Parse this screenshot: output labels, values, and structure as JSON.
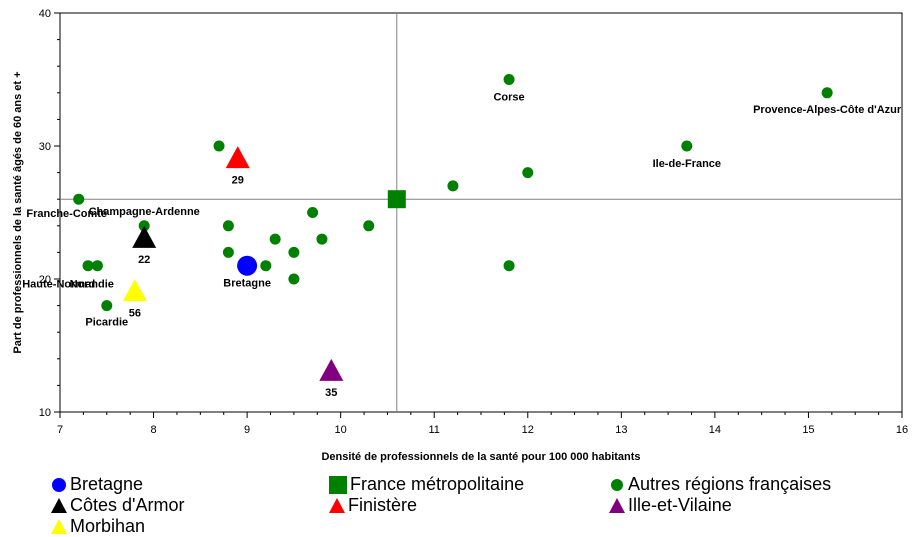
{
  "chart_data": {
    "type": "scatter",
    "xlabel": "Densité de professionnels de la santé pour 100 000 habitants",
    "ylabel": "Part de professionnels de la santé âgés de 60 ans et +",
    "xlim": [
      7,
      16
    ],
    "ylim": [
      10,
      40
    ],
    "x_ticks": [
      "7",
      "8",
      "9",
      "10",
      "11",
      "12",
      "13",
      "14",
      "15",
      "16"
    ],
    "y_ticks": [
      "10",
      "20",
      "30",
      "40"
    ],
    "grid": false,
    "reference_lines": {
      "x": 10.6,
      "y": 26
    },
    "legend_position": "bottom",
    "series": [
      {
        "name": "Bretagne",
        "marker": "circle",
        "color": "#0000ff",
        "points": [
          {
            "x": 9.0,
            "y": 21,
            "label": "Bretagne"
          }
        ]
      },
      {
        "name": "Côtes d'Armor",
        "marker": "triangle",
        "color": "#000000",
        "points": [
          {
            "x": 7.9,
            "y": 23,
            "label": "22"
          }
        ]
      },
      {
        "name": "Morbihan",
        "marker": "triangle",
        "color": "#ffff00",
        "points": [
          {
            "x": 7.8,
            "y": 19,
            "label": "56"
          }
        ]
      },
      {
        "name": "France métropolitaine",
        "marker": "square",
        "color": "#008000",
        "points": [
          {
            "x": 10.6,
            "y": 26,
            "label": ""
          }
        ]
      },
      {
        "name": "Finistère",
        "marker": "triangle",
        "color": "#ff0000",
        "points": [
          {
            "x": 8.9,
            "y": 29,
            "label": "29"
          }
        ]
      },
      {
        "name": "Autres régions françaises",
        "marker": "circle-small",
        "color": "#008000",
        "points": [
          {
            "x": 7.2,
            "y": 26,
            "label": "Franche-Comté"
          },
          {
            "x": 7.9,
            "y": 24,
            "label": "Champagne-Ardenne"
          },
          {
            "x": 7.3,
            "y": 21,
            "label": "Haute-Normandie"
          },
          {
            "x": 7.4,
            "y": 21,
            "label": "Nord"
          },
          {
            "x": 7.5,
            "y": 18,
            "label": "Picardie"
          },
          {
            "x": 8.7,
            "y": 30,
            "label": ""
          },
          {
            "x": 8.8,
            "y": 24,
            "label": ""
          },
          {
            "x": 8.8,
            "y": 22,
            "label": ""
          },
          {
            "x": 9.2,
            "y": 21,
            "label": ""
          },
          {
            "x": 9.3,
            "y": 23,
            "label": ""
          },
          {
            "x": 9.5,
            "y": 22,
            "label": ""
          },
          {
            "x": 9.5,
            "y": 20,
            "label": ""
          },
          {
            "x": 9.7,
            "y": 25,
            "label": ""
          },
          {
            "x": 9.8,
            "y": 23,
            "label": ""
          },
          {
            "x": 10.3,
            "y": 24,
            "label": ""
          },
          {
            "x": 11.2,
            "y": 27,
            "label": ""
          },
          {
            "x": 11.8,
            "y": 35,
            "label": "Corse"
          },
          {
            "x": 11.8,
            "y": 21,
            "label": ""
          },
          {
            "x": 12.0,
            "y": 28,
            "label": ""
          },
          {
            "x": 13.7,
            "y": 30,
            "label": "Ile-de-France"
          },
          {
            "x": 15.2,
            "y": 34,
            "label": "Provence-Alpes-Côte d'Azur"
          }
        ]
      },
      {
        "name": "Ille-et-Vilaine",
        "marker": "triangle",
        "color": "#800080",
        "points": [
          {
            "x": 9.9,
            "y": 13,
            "label": "35"
          }
        ]
      }
    ]
  },
  "legend": {
    "items": [
      {
        "label": "Bretagne",
        "marker": "circle",
        "color": "#0000ff"
      },
      {
        "label": "France métropolitaine",
        "marker": "square",
        "color": "#008000"
      },
      {
        "label": "Autres régions françaises",
        "marker": "circle",
        "color": "#008000"
      },
      {
        "label": "Côtes d'Armor",
        "marker": "triangle",
        "color": "#000000"
      },
      {
        "label": "Finistère",
        "marker": "triangle",
        "color": "#ff0000"
      },
      {
        "label": "Ille-et-Vilaine",
        "marker": "triangle",
        "color": "#800080"
      },
      {
        "label": "Morbihan",
        "marker": "triangle",
        "color": "#ffff00"
      }
    ]
  }
}
